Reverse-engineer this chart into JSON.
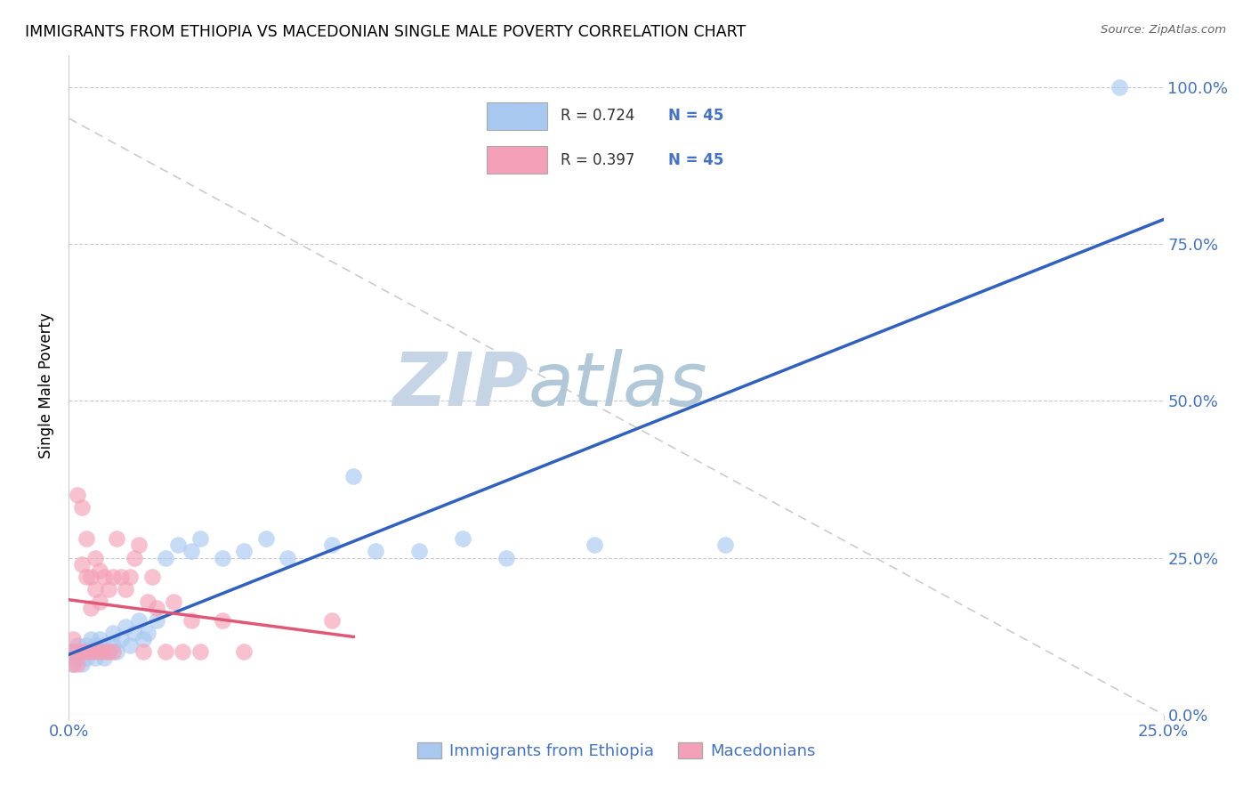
{
  "title": "IMMIGRANTS FROM ETHIOPIA VS MACEDONIAN SINGLE MALE POVERTY CORRELATION CHART",
  "source": "Source: ZipAtlas.com",
  "ylabel": "Single Male Poverty",
  "legend_label1": "Immigrants from Ethiopia",
  "legend_label2": "Macedonians",
  "color_blue": "#a8c8f0",
  "color_pink": "#f4a0b8",
  "color_blue_line": "#3060c0",
  "color_pink_line": "#e05878",
  "color_diag_line": "#cccccc",
  "watermark_zip": "ZIP",
  "watermark_atlas": "atlas",
  "watermark_color_zip": "#c8d8e8",
  "watermark_color_atlas": "#b8c8d8",
  "tick_color": "#4472c4",
  "eth_x": [
    0.001,
    0.001,
    0.002,
    0.002,
    0.003,
    0.003,
    0.004,
    0.004,
    0.005,
    0.005,
    0.006,
    0.006,
    0.007,
    0.007,
    0.008,
    0.008,
    0.009,
    0.01,
    0.01,
    0.011,
    0.012,
    0.013,
    0.014,
    0.015,
    0.016,
    0.017,
    0.018,
    0.02,
    0.022,
    0.025,
    0.028,
    0.03,
    0.035,
    0.04,
    0.045,
    0.05,
    0.06,
    0.065,
    0.07,
    0.08,
    0.09,
    0.1,
    0.12,
    0.15,
    0.24
  ],
  "eth_y": [
    0.08,
    0.1,
    0.09,
    0.11,
    0.1,
    0.08,
    0.09,
    0.11,
    0.1,
    0.12,
    0.09,
    0.11,
    0.1,
    0.12,
    0.11,
    0.09,
    0.1,
    0.11,
    0.13,
    0.1,
    0.12,
    0.14,
    0.11,
    0.13,
    0.15,
    0.12,
    0.13,
    0.15,
    0.25,
    0.27,
    0.26,
    0.28,
    0.25,
    0.26,
    0.28,
    0.25,
    0.27,
    0.38,
    0.26,
    0.26,
    0.28,
    0.25,
    0.27,
    0.27,
    1.0
  ],
  "mac_x": [
    0.001,
    0.001,
    0.001,
    0.002,
    0.002,
    0.002,
    0.003,
    0.003,
    0.003,
    0.004,
    0.004,
    0.004,
    0.005,
    0.005,
    0.005,
    0.006,
    0.006,
    0.006,
    0.007,
    0.007,
    0.007,
    0.008,
    0.008,
    0.009,
    0.009,
    0.01,
    0.01,
    0.011,
    0.012,
    0.013,
    0.014,
    0.015,
    0.016,
    0.017,
    0.018,
    0.019,
    0.02,
    0.022,
    0.024,
    0.026,
    0.028,
    0.03,
    0.035,
    0.04,
    0.06
  ],
  "mac_y": [
    0.08,
    0.1,
    0.12,
    0.08,
    0.1,
    0.35,
    0.1,
    0.24,
    0.33,
    0.1,
    0.22,
    0.28,
    0.1,
    0.17,
    0.22,
    0.1,
    0.2,
    0.25,
    0.1,
    0.18,
    0.23,
    0.1,
    0.22,
    0.1,
    0.2,
    0.1,
    0.22,
    0.28,
    0.22,
    0.2,
    0.22,
    0.25,
    0.27,
    0.1,
    0.18,
    0.22,
    0.17,
    0.1,
    0.18,
    0.1,
    0.15,
    0.1,
    0.15,
    0.1,
    0.15
  ],
  "xlim": [
    0.0,
    0.25
  ],
  "ylim": [
    0.0,
    1.05
  ],
  "yticks": [
    0.0,
    0.25,
    0.5,
    0.75,
    1.0
  ],
  "xticks": [
    0.0,
    0.25
  ]
}
